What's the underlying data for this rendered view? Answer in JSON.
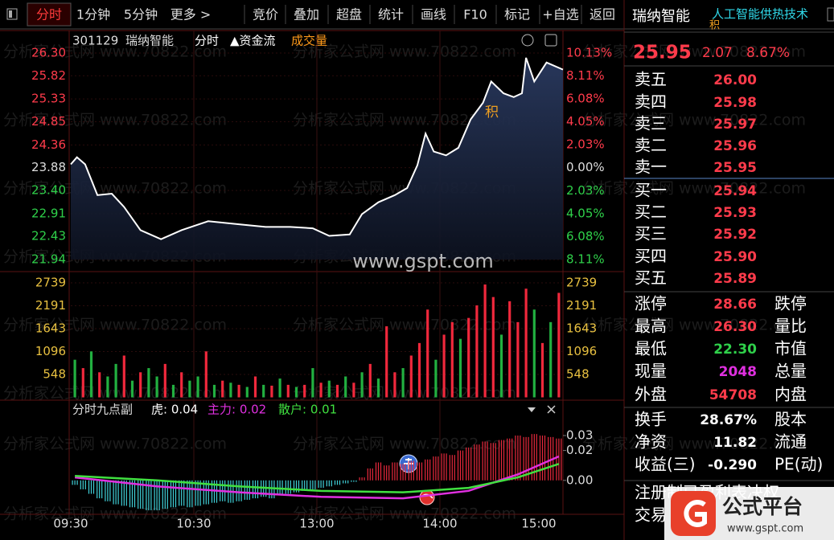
{
  "toolbar": {
    "tabs": [
      "分时",
      "1分钟",
      "5分钟",
      "更多 >",
      "竞价",
      "叠加",
      "超盘",
      "统计",
      "画线",
      "F10",
      "标记",
      "+自选",
      "返回"
    ]
  },
  "header": {
    "code": "301129",
    "name": "瑞纳智能",
    "mode": "分时",
    "flow": "▲资金流",
    "volume": "成交量"
  },
  "watermark": "分析家公式网 www.70822.com",
  "center_watermark": "www.gspt.com",
  "logo": {
    "title": "公式平台",
    "url": "www.gspt.com"
  },
  "quote": {
    "name": "瑞纳智能",
    "concept": "人工智能供热技术",
    "badge": "积",
    "price": "25.95",
    "change": "2.07",
    "change_pct": "8.67%",
    "asks": [
      [
        "卖五",
        "26.00"
      ],
      [
        "卖四",
        "25.98"
      ],
      [
        "卖三",
        "25.97"
      ],
      [
        "卖二",
        "25.96"
      ],
      [
        "卖一",
        "25.95"
      ]
    ],
    "bids": [
      [
        "买一",
        "25.94"
      ],
      [
        "买二",
        "25.93"
      ],
      [
        "买三",
        "25.92"
      ],
      [
        "买四",
        "25.90"
      ],
      [
        "买五",
        "25.89"
      ]
    ],
    "stats": [
      [
        "涨停",
        "28.66",
        "跌停"
      ],
      [
        "最高",
        "26.30",
        "量比"
      ],
      [
        "最低",
        "22.30",
        "市值"
      ],
      [
        "现量",
        "2048",
        "总量"
      ],
      [
        "外盘",
        "54708",
        "内盘"
      ],
      [
        "换手",
        "28.67%",
        "股本"
      ],
      [
        "净资",
        "11.82",
        "流通"
      ],
      [
        "收益(三)",
        "-0.290",
        "PE(动)"
      ]
    ],
    "stat_colors": [
      "#ff3b4b",
      "#ff3b4b",
      "#2fd04a",
      "#e030e0",
      "#ff3b4b",
      "#ffffff",
      "#ffffff",
      "#ffffff"
    ],
    "notes": [
      "注册制已盈利表决权",
      "交易"
    ]
  },
  "chart_data": [
    {
      "type": "line",
      "x": [
        0,
        3,
        7,
        13,
        20,
        26,
        34,
        44,
        54,
        67,
        83,
        95,
        107,
        118,
        126,
        136,
        142,
        150,
        158,
        164,
        169,
        173,
        177,
        183,
        189,
        195,
        201,
        205,
        211,
        216,
        220,
        222,
        226,
        232,
        240
      ],
      "values": [
        23.95,
        24.1,
        23.95,
        23.3,
        23.33,
        23.05,
        22.56,
        22.37,
        22.56,
        22.75,
        22.68,
        22.63,
        22.63,
        22.6,
        22.44,
        22.47,
        22.9,
        23.15,
        23.3,
        23.45,
        23.93,
        24.6,
        24.22,
        24.14,
        24.3,
        24.9,
        25.25,
        25.7,
        25.45,
        25.37,
        25.45,
        26.2,
        25.7,
        26.1,
        25.95
      ],
      "color": "#ffffff",
      "fill": "#22304e",
      "xlim": [
        0,
        240
      ],
      "xticks": [
        {
          "value": 0,
          "label": "09:30"
        },
        {
          "value": 60,
          "label": "10:30"
        },
        {
          "value": 120,
          "label": "13:00"
        },
        {
          "value": 180,
          "label": "14:00"
        },
        {
          "value": 240,
          "label": "15:00"
        }
      ],
      "ylim": [
        21.94,
        26.3
      ],
      "yticks": [
        {
          "value": 26.3,
          "label": "26.30"
        },
        25.82,
        25.33,
        24.85,
        24.36,
        23.88,
        {
          "value": 23.4,
          "label": "23.40"
        },
        22.91,
        22.43,
        21.94
      ],
      "y2lim": [
        -8.11,
        10.13
      ],
      "y2ticks": [
        {
          "value": 10.13,
          "label": "10.13%"
        },
        {
          "value": 8.11,
          "label": "8.11%"
        },
        {
          "value": 6.08,
          "label": "6.08%"
        },
        {
          "value": 4.05,
          "label": "4.05%"
        },
        {
          "value": 2.03,
          "label": "2.03%"
        },
        {
          "value": 0,
          "label": "0.00%"
        },
        {
          "value": -2.03,
          "label": "2.03%"
        },
        {
          "value": -4.05,
          "label": "4.05%"
        },
        {
          "value": -6.08,
          "label": "6.08%"
        },
        {
          "value": -8.11,
          "label": "8.11%"
        }
      ],
      "prev_close": 23.88,
      "up_color": "#ff3b4b",
      "down_color": "#2fd04a",
      "flat_color": "#dddddd",
      "marker": "积"
    },
    {
      "type": "bar",
      "values": [
        900,
        700,
        1100,
        600,
        500,
        800,
        1000,
        400,
        600,
        700,
        500,
        800,
        300,
        600,
        400,
        500,
        1100,
        300,
        400,
        350,
        300,
        250,
        500,
        300,
        280,
        450,
        300,
        250,
        300,
        700,
        350,
        400,
        300,
        500,
        350,
        600,
        800,
        450,
        1700,
        600,
        700,
        1000,
        1300,
        2100,
        900,
        1500,
        1800,
        1400,
        1900,
        2200,
        2700,
        2400,
        1500,
        2300,
        1800,
        2600,
        2100,
        1300,
        1800,
        2500
      ],
      "colors": [
        "#22b040",
        "#f0283c",
        "#22b040",
        "#f0283c",
        "#22b040",
        "#22b040",
        "#f0283c",
        "#22b040",
        "#f0283c",
        "#22b040",
        "#22b040",
        "#f0283c",
        "#22b040",
        "#f0283c",
        "#22b040",
        "#22b040",
        "#f0283c",
        "#22b040",
        "#f0283c",
        "#22b040",
        "#f0283c",
        "#22b040",
        "#f0283c",
        "#22b040",
        "#f0283c",
        "#22b040",
        "#f0283c",
        "#22b040",
        "#f0283c",
        "#22b040",
        "#f0283c",
        "#22b040",
        "#f0283c",
        "#22b040",
        "#f0283c",
        "#22b040",
        "#f0283c",
        "#22b040",
        "#f0283c",
        "#f0283c",
        "#22b040",
        "#f0283c",
        "#f0283c",
        "#f0283c",
        "#22b040",
        "#f0283c",
        "#f0283c",
        "#22b040",
        "#f0283c",
        "#f0283c",
        "#f0283c",
        "#f0283c",
        "#22b040",
        "#f0283c",
        "#f0283c",
        "#f0283c",
        "#22b040",
        "#f0283c",
        "#22b040",
        "#f0283c"
      ],
      "ylim": [
        0,
        2739
      ],
      "yticks": [
        2739,
        2191,
        1643,
        1096,
        548
      ],
      "tick_color": "#e8c040"
    },
    {
      "type": "bar",
      "title": "分时九点副",
      "legend": [
        "虎: 0.04",
        "主力: 0.02",
        "散户: 0.01"
      ],
      "legend_colors": [
        "#ffffff",
        "#e030e0",
        "#40e040"
      ],
      "values": [
        -0.003,
        -0.006,
        -0.009,
        -0.012,
        -0.014,
        -0.016,
        -0.017,
        -0.018,
        -0.019,
        -0.02,
        -0.02,
        -0.019,
        -0.018,
        -0.017,
        -0.018,
        -0.017,
        -0.016,
        -0.015,
        -0.014,
        -0.015,
        -0.014,
        -0.013,
        -0.012,
        -0.011,
        -0.012,
        -0.01,
        -0.009,
        -0.008,
        -0.007,
        -0.006,
        -0.005,
        -0.004,
        -0.003,
        -0.002,
        -0.001,
        0.002,
        0.008,
        0.012,
        0.01,
        0.012,
        0.011,
        0.013,
        0.012,
        0.014,
        0.016,
        0.018,
        0.017,
        0.02,
        0.022,
        0.024,
        0.026,
        0.025,
        0.027,
        0.028,
        0.03,
        0.029,
        0.031,
        0.03,
        0.029,
        0.028
      ],
      "up_color": "#e8283c",
      "down_color": "#40d0d8",
      "lines": [
        {
          "color": "#e030e0",
          "x": [
            0,
            10,
            20,
            30,
            40,
            48,
            54,
            59
          ],
          "values": [
            0.002,
            -0.004,
            -0.008,
            -0.011,
            -0.012,
            -0.007,
            0.004,
            0.016
          ]
        },
        {
          "color": "#40e040",
          "x": [
            0,
            10,
            20,
            30,
            40,
            48,
            54,
            59
          ],
          "values": [
            0.003,
            0.0,
            -0.004,
            -0.007,
            -0.008,
            -0.005,
            0.002,
            0.011
          ]
        }
      ],
      "ylim": [
        -0.02,
        0.03
      ],
      "yticks": [
        0.03,
        0.02,
        {
          "value": 0,
          "label": "0.00"
        }
      ],
      "tick_color": "#dddddd"
    }
  ]
}
